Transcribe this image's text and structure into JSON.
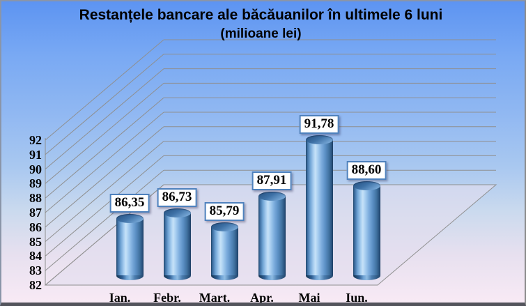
{
  "chart_data": {
    "type": "bar",
    "subtype": "3d-cylinder",
    "title": "Restanțele bancare ale băcăuanilor în ultimele 6 luni",
    "subtitle": "(milioane lei)",
    "categories": [
      "Ian.",
      "Febr.",
      "Mart.",
      "Apr.",
      "Mai",
      "Iun."
    ],
    "values": [
      86.35,
      86.73,
      85.79,
      87.91,
      91.78,
      88.6
    ],
    "value_labels": [
      "86,35",
      "86,73",
      "85,79",
      "87,91",
      "91,78",
      "88,60"
    ],
    "ylim": [
      82,
      92
    ],
    "yticks": [
      82,
      83,
      84,
      85,
      86,
      87,
      88,
      89,
      90,
      91,
      92
    ],
    "xlabel": "",
    "ylabel": "",
    "grid": true,
    "legend": false,
    "projection": "3d-perspective",
    "colors": {
      "background_top": "#5D94F2",
      "background_mid": "#A9C8F0",
      "background_bottom": "#F8EAF5",
      "gridline": "#8F8F8F",
      "floor_fill": "#E3DDEF",
      "bar_light": "#C6E2F8",
      "bar_dark": "#1E4467",
      "label_box_border": "#4E81BD",
      "label_box_bg": "#FFFFFF",
      "text": "#000000"
    }
  }
}
